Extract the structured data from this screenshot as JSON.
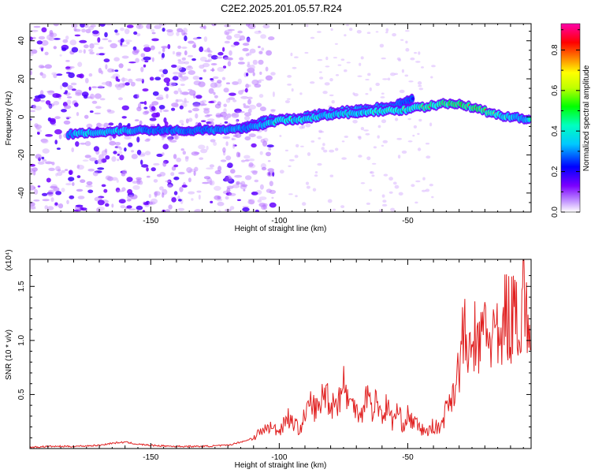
{
  "title": "C2E2.2025.201.05.57.R24",
  "chart_data": [
    {
      "type": "heatmap",
      "xlabel": "Height of straight line (km)",
      "ylabel": "Frequency (Hz)",
      "xlim": [
        -197,
        -2
      ],
      "ylim": [
        -50,
        49
      ],
      "x_ticks": [
        -150,
        -100,
        -50
      ],
      "x_tick_labels": [
        "-150",
        "-100",
        "-50"
      ],
      "y_ticks": [
        -40,
        -20,
        0,
        20,
        40
      ],
      "y_tick_labels": [
        "-40",
        "-20",
        "0",
        "20",
        "40"
      ],
      "grid": false,
      "colorbar": {
        "label": "Normalized spectral amplitude",
        "range": [
          0,
          0.93
        ],
        "ticks": [
          0.0,
          0.2,
          0.4,
          0.6,
          0.8
        ],
        "tick_labels": [
          "0.0",
          "0.2",
          "0.4",
          "0.6",
          "0.8"
        ],
        "colormap": [
          "#ffffff",
          "#7b00ff",
          "#0000ff",
          "#00ffff",
          "#00ff00",
          "#ffff00",
          "#ff8000",
          "#ff0000",
          "#ff00aa"
        ]
      },
      "ridge": {
        "x": [
          -182,
          -170,
          -160,
          -150,
          -140,
          -130,
          -120,
          -110,
          -100,
          -90,
          -80,
          -70,
          -60,
          -50,
          -40,
          -35,
          -30,
          -25,
          -20,
          -15,
          -10,
          -5,
          -2
        ],
        "y": [
          -9,
          -8,
          -7,
          -7,
          -7,
          -7,
          -7,
          -5,
          -2,
          -1,
          1,
          2,
          3,
          4,
          6,
          7,
          7,
          5,
          3,
          1,
          0,
          -1,
          -1
        ],
        "amplitude": [
          0.4,
          0.45,
          0.45,
          0.3,
          0.3,
          0.3,
          0.35,
          0.35,
          0.5,
          0.5,
          0.45,
          0.5,
          0.55,
          0.6,
          0.7,
          0.75,
          0.9,
          0.8,
          0.8,
          0.6,
          0.5,
          0.4,
          0.4
        ]
      },
      "secondary_ridge": {
        "x": [
          -115,
          -105,
          -95,
          -85,
          -75,
          -65,
          -55,
          -48
        ],
        "y": [
          -6,
          -2,
          -1,
          1,
          3,
          4,
          6,
          9
        ],
        "amplitude": [
          0.3,
          0.35,
          0.4,
          0.4,
          0.45,
          0.4,
          0.3,
          0.2
        ]
      }
    },
    {
      "type": "line",
      "xlabel": "Height of straight line (km)",
      "ylabel": "SNR (10 * v/v)",
      "y_scale_label": "(x10⁴)",
      "xlim": [
        -197,
        -2
      ],
      "ylim": [
        0,
        1.75
      ],
      "x_ticks": [
        -150,
        -100,
        -50
      ],
      "x_tick_labels": [
        "-150",
        "-100",
        "-50"
      ],
      "y_ticks": [
        0.5,
        1.0,
        1.5
      ],
      "y_tick_labels": [
        "0.5",
        "1.0",
        "1.5"
      ],
      "grid": false,
      "line_color": "#e02020",
      "series": [
        {
          "x": [
            -197,
            -190,
            -180,
            -170,
            -165,
            -160,
            -155,
            -150,
            -140,
            -130,
            -120,
            -112,
            -108,
            -104,
            -100,
            -97,
            -94,
            -92,
            -90,
            -88,
            -85,
            -82,
            -80,
            -77,
            -75,
            -72,
            -70,
            -68,
            -66,
            -64,
            -62,
            -60,
            -58,
            -56,
            -54,
            -52,
            -50,
            -48,
            -45,
            -42,
            -40,
            -38,
            -36,
            -34,
            -32,
            -30,
            -28,
            -26,
            -24,
            -22,
            -20,
            -18,
            -16,
            -14,
            -12,
            -10,
            -8,
            -6,
            -5,
            -4,
            -3,
            -2
          ],
          "values": [
            0.01,
            0.02,
            0.02,
            0.03,
            0.05,
            0.06,
            0.04,
            0.03,
            0.02,
            0.02,
            0.03,
            0.08,
            0.14,
            0.2,
            0.16,
            0.3,
            0.22,
            0.18,
            0.3,
            0.42,
            0.35,
            0.55,
            0.4,
            0.45,
            0.6,
            0.38,
            0.42,
            0.3,
            0.55,
            0.35,
            0.45,
            0.3,
            0.4,
            0.25,
            0.35,
            0.22,
            0.3,
            0.25,
            0.18,
            0.15,
            0.22,
            0.18,
            0.28,
            0.45,
            0.55,
            0.75,
            1.1,
            0.8,
            1.05,
            0.9,
            1.2,
            1.0,
            1.1,
            0.85,
            1.3,
            1.15,
            1.4,
            1.05,
            1.72,
            1.2,
            1.0,
            1.0
          ]
        }
      ]
    }
  ]
}
